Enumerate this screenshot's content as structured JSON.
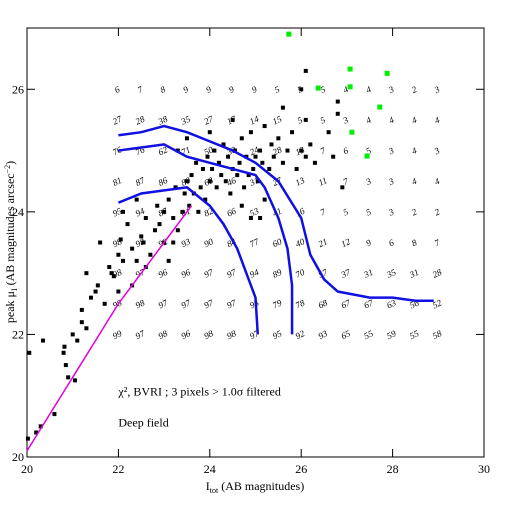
{
  "chart_data": {
    "type": "scatter",
    "xlabel": {
      "main": "I",
      "sub": "tot",
      "rest": " (AB magnitudes)"
    },
    "ylabel": {
      "main": "peak μ",
      "sub": "I",
      "rest": " (AB magnitudes arcsec",
      "sup": "−2",
      "end": ")"
    },
    "annotations": [
      {
        "text": "χ², BVRI ; 3 pixels > 1.0σ filtered",
        "x": 22,
        "y": 21.0
      },
      {
        "text": "Deep field",
        "x": 22,
        "y": 20.5
      }
    ],
    "xlim": [
      20,
      30
    ],
    "ylim": [
      20,
      27
    ],
    "xticks": [
      20,
      22,
      24,
      26,
      28,
      30
    ],
    "yticks": [
      20,
      22,
      24,
      26
    ],
    "series": [
      {
        "color": "#000000",
        "size": 4,
        "points": [
          [
            20.02,
            20.3
          ],
          [
            20.05,
            21.7
          ],
          [
            20.2,
            20.4
          ],
          [
            20.3,
            20.5
          ],
          [
            20.35,
            21.9
          ],
          [
            20.6,
            20.7
          ],
          [
            20.8,
            21.7
          ],
          [
            20.82,
            21.8
          ],
          [
            20.85,
            21.5
          ],
          [
            21.05,
            21.25
          ],
          [
            21.1,
            21.9
          ],
          [
            21.2,
            22.2
          ],
          [
            21.2,
            22.4
          ],
          [
            21.3,
            22.1
          ],
          [
            21.5,
            22.7
          ],
          [
            21.55,
            22.8
          ],
          [
            21.7,
            22.5
          ],
          [
            21.85,
            23.0
          ],
          [
            21.9,
            22.95
          ],
          [
            22.0,
            23.3
          ],
          [
            22.05,
            23.55
          ],
          [
            22.1,
            23.2
          ],
          [
            22.2,
            23.8
          ],
          [
            22.3,
            23.4
          ],
          [
            22.4,
            23.2
          ],
          [
            22.5,
            23.6
          ],
          [
            22.55,
            23.5
          ],
          [
            22.6,
            23.9
          ],
          [
            22.7,
            23.3
          ],
          [
            22.8,
            23.7
          ],
          [
            22.85,
            24.1
          ],
          [
            22.9,
            23.8
          ],
          [
            23.0,
            23.5
          ],
          [
            23.0,
            24.0
          ],
          [
            23.1,
            24.2
          ],
          [
            23.2,
            23.9
          ],
          [
            23.25,
            24.4
          ],
          [
            23.3,
            23.7
          ],
          [
            23.4,
            24.0
          ],
          [
            23.45,
            24.3
          ],
          [
            23.5,
            24.5
          ],
          [
            23.55,
            24.1
          ],
          [
            23.6,
            24.6
          ],
          [
            23.65,
            24.3
          ],
          [
            23.7,
            24.8
          ],
          [
            23.75,
            24.0
          ],
          [
            23.8,
            24.4
          ],
          [
            23.85,
            24.7
          ],
          [
            23.9,
            24.2
          ],
          [
            23.95,
            24.9
          ],
          [
            24.0,
            24.5
          ],
          [
            24.05,
            24.7
          ],
          [
            24.1,
            25.0
          ],
          [
            24.15,
            24.4
          ],
          [
            24.2,
            24.8
          ],
          [
            24.25,
            24.6
          ],
          [
            24.3,
            25.1
          ],
          [
            24.35,
            24.5
          ],
          [
            24.4,
            24.9
          ],
          [
            24.45,
            24.3
          ],
          [
            24.5,
            24.7
          ],
          [
            24.55,
            25.0
          ],
          [
            24.6,
            24.6
          ],
          [
            24.65,
            24.8
          ],
          [
            24.7,
            25.2
          ],
          [
            24.75,
            24.4
          ],
          [
            24.8,
            24.9
          ],
          [
            24.85,
            24.6
          ],
          [
            24.9,
            25.3
          ],
          [
            24.95,
            24.7
          ],
          [
            25.0,
            24.9
          ],
          [
            25.05,
            24.5
          ],
          [
            25.1,
            25.0
          ],
          [
            25.15,
            24.8
          ],
          [
            25.2,
            25.4
          ],
          [
            25.3,
            24.7
          ],
          [
            25.35,
            25.1
          ],
          [
            25.4,
            24.9
          ],
          [
            25.5,
            25.2
          ],
          [
            25.6,
            24.8
          ],
          [
            25.7,
            25.0
          ],
          [
            25.8,
            25.3
          ],
          [
            25.9,
            24.7
          ],
          [
            26.0,
            25.0
          ],
          [
            26.1,
            24.9
          ],
          [
            26.2,
            25.1
          ],
          [
            26.3,
            24.8
          ],
          [
            25.2,
            24.2
          ],
          [
            25.1,
            23.9
          ],
          [
            24.9,
            23.9
          ],
          [
            24.7,
            24.1
          ],
          [
            23.5,
            25.2
          ],
          [
            23.3,
            25.0
          ],
          [
            24.0,
            25.3
          ],
          [
            24.5,
            25.5
          ],
          [
            25.6,
            25.7
          ],
          [
            26.1,
            25.5
          ],
          [
            26.1,
            26.3
          ],
          [
            26.0,
            26.0
          ],
          [
            26.6,
            25.3
          ],
          [
            26.8,
            25.6
          ],
          [
            26.9,
            24.4
          ],
          [
            26.7,
            24.9
          ],
          [
            26.8,
            25.8
          ],
          [
            22.3,
            22.8
          ],
          [
            22.0,
            22.7
          ],
          [
            22.6,
            23.1
          ],
          [
            23.1,
            23.2
          ],
          [
            23.2,
            23.5
          ],
          [
            22.4,
            24.2
          ],
          [
            22.1,
            24.0
          ],
          [
            21.8,
            23.1
          ],
          [
            21.6,
            23.5
          ],
          [
            21.4,
            22.6
          ],
          [
            21.0,
            22.0
          ],
          [
            20.9,
            21.3
          ],
          [
            21.3,
            23.0
          ]
        ]
      },
      {
        "color": "#00ee00",
        "size": 5,
        "points": [
          [
            25.73,
            26.9
          ],
          [
            27.07,
            26.33
          ],
          [
            27.88,
            26.26
          ],
          [
            26.37,
            26.02
          ],
          [
            27.07,
            26.04
          ],
          [
            27.72,
            25.71
          ],
          [
            27.11,
            25.3
          ],
          [
            27.44,
            24.91
          ]
        ]
      }
    ],
    "lines": [
      {
        "color": "#1010e0",
        "width": 2.5,
        "points": [
          [
            22,
            25.25
          ],
          [
            22.5,
            25.3
          ],
          [
            23,
            25.4
          ],
          [
            23.5,
            25.3
          ],
          [
            24,
            25.15
          ],
          [
            24.5,
            25.0
          ],
          [
            25,
            24.8
          ],
          [
            25.5,
            24.5
          ],
          [
            26,
            23.9
          ],
          [
            26.2,
            23.3
          ],
          [
            26.5,
            22.9
          ],
          [
            26.8,
            22.7
          ],
          [
            27.5,
            22.6
          ],
          [
            28,
            22.6
          ],
          [
            28.5,
            22.55
          ],
          [
            28.9,
            22.55
          ]
        ]
      },
      {
        "color": "#1010e0",
        "width": 2.5,
        "points": [
          [
            22,
            25.0
          ],
          [
            22.5,
            25.05
          ],
          [
            23,
            25.1
          ],
          [
            23.5,
            24.9
          ],
          [
            24,
            24.8
          ],
          [
            24.5,
            24.7
          ],
          [
            25,
            24.6
          ],
          [
            25.2,
            24.4
          ],
          [
            25.5,
            23.9
          ],
          [
            25.7,
            23.4
          ],
          [
            25.8,
            22.8
          ],
          [
            25.8,
            22.0
          ]
        ]
      },
      {
        "color": "#1010e0",
        "width": 2.5,
        "points": [
          [
            22,
            24.15
          ],
          [
            22.5,
            24.3
          ],
          [
            23,
            24.35
          ],
          [
            23.5,
            24.4
          ],
          [
            24,
            24.1
          ],
          [
            24.3,
            23.8
          ],
          [
            24.6,
            23.4
          ],
          [
            24.8,
            23.0
          ],
          [
            25.0,
            22.6
          ],
          [
            25.05,
            22.0
          ]
        ]
      },
      {
        "color": "#e000e0",
        "width": 1.5,
        "points": [
          [
            20,
            20.1
          ],
          [
            21,
            21.3
          ],
          [
            22,
            22.5
          ],
          [
            23,
            23.5
          ],
          [
            23.6,
            24.1
          ]
        ]
      }
    ],
    "red_grid": {
      "color": "#dd0000",
      "x": [
        22,
        22.5,
        23,
        23.5,
        24,
        24.5,
        25,
        25.5,
        26,
        26.5,
        27,
        27.5,
        28,
        28.5,
        29
      ],
      "y": [
        26,
        25.5,
        25,
        24.5,
        24,
        23.5,
        23,
        22.5,
        22
      ],
      "values": [
        [
          6,
          7,
          8,
          9,
          9,
          9,
          9,
          5,
          5,
          5,
          4,
          4,
          3,
          2,
          3
        ],
        [
          27,
          28,
          38,
          35,
          27,
          17,
          14,
          15,
          5,
          5,
          3,
          4,
          4,
          4,
          4
        ],
        [
          76,
          76,
          62,
          71,
          50,
          30,
          24,
          28,
          13,
          7,
          6,
          5,
          3,
          4,
          3
        ],
        [
          81,
          87,
          86,
          80,
          68,
          46,
          31,
          27,
          13,
          11,
          7,
          3,
          3,
          4,
          4
        ],
        [
          95,
          94,
          87,
          81,
          82,
          66,
          53,
          41,
          16,
          7,
          5,
          5,
          3,
          2,
          2
        ],
        [
          98,
          98,
          92,
          93,
          90,
          84,
          77,
          60,
          40,
          21,
          12,
          9,
          6,
          8,
          7
        ],
        [
          98,
          97,
          96,
          96,
          97,
          97,
          94,
          89,
          70,
          57,
          37,
          31,
          35,
          31,
          28
        ],
        [
          98,
          98,
          97,
          97,
          97,
          97,
          95,
          79,
          78,
          68,
          67,
          67,
          63,
          56,
          52
        ],
        [
          99,
          97,
          98,
          96,
          98,
          98,
          97,
          95,
          92,
          93,
          65,
          55,
          59,
          55,
          58
        ]
      ]
    }
  }
}
